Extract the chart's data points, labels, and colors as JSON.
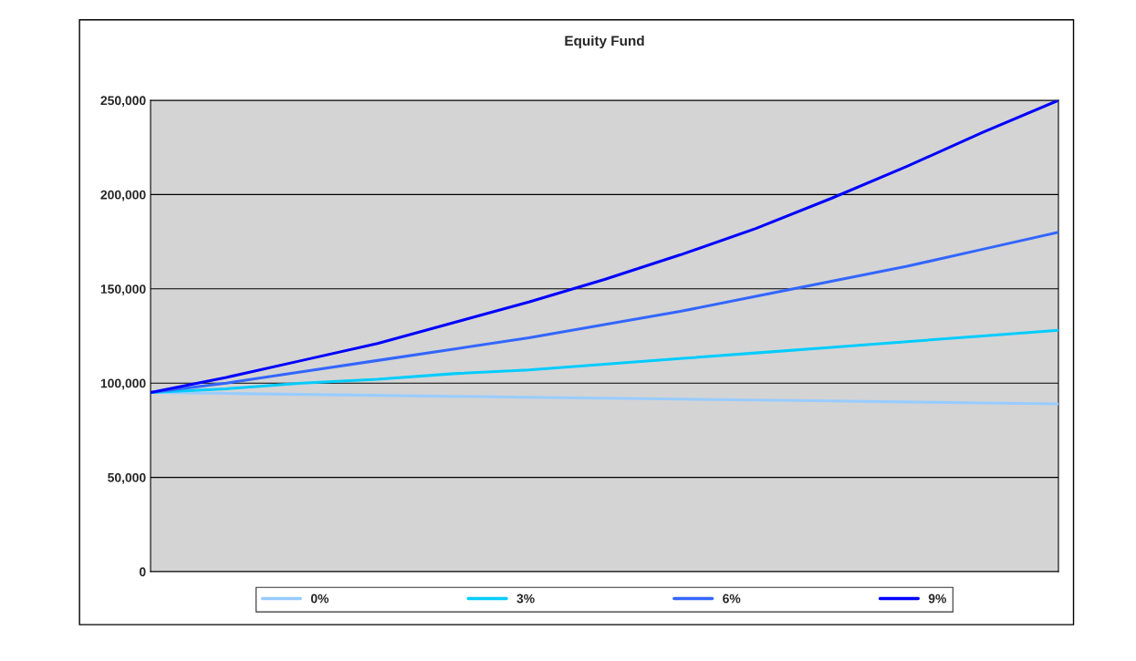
{
  "chart_data": {
    "type": "line",
    "title": "Equity Fund",
    "categories": [
      null,
      null,
      null,
      null,
      null,
      null,
      null,
      null,
      null,
      null,
      null,
      null,
      null
    ],
    "series": [
      {
        "name": "0%",
        "color": "#99ccff",
        "values": [
          95000,
          94500,
          94000,
          93500,
          93000,
          92500,
          92000,
          91500,
          91000,
          90500,
          90000,
          89500,
          89000
        ]
      },
      {
        "name": "3%",
        "color": "#00ccff",
        "values": [
          95000,
          97000,
          100000,
          102000,
          105000,
          107000,
          110000,
          113000,
          116000,
          119000,
          122000,
          125000,
          128000
        ]
      },
      {
        "name": "6%",
        "color": "#3366ff",
        "values": [
          95000,
          100000,
          106000,
          112000,
          118000,
          124000,
          131000,
          138000,
          146000,
          154000,
          162000,
          171000,
          180000
        ]
      },
      {
        "name": "9%",
        "color": "#0000ff",
        "values": [
          95000,
          103000,
          112000,
          121000,
          132000,
          143000,
          155000,
          168000,
          182000,
          198000,
          215000,
          233000,
          250000
        ]
      }
    ],
    "ylim": [
      0,
      250000
    ],
    "yticks": [
      {
        "value": 0,
        "label": "0"
      },
      {
        "value": 50000,
        "label": "50,000"
      },
      {
        "value": 100000,
        "label": "100,000"
      },
      {
        "value": 150000,
        "label": "150,000"
      },
      {
        "value": 200000,
        "label": "200,000"
      },
      {
        "value": 250000,
        "label": "250,000"
      }
    ],
    "grid": "y",
    "legend": "bottom",
    "tick_labels": "y",
    "marker": "none",
    "line_style": "solid"
  }
}
